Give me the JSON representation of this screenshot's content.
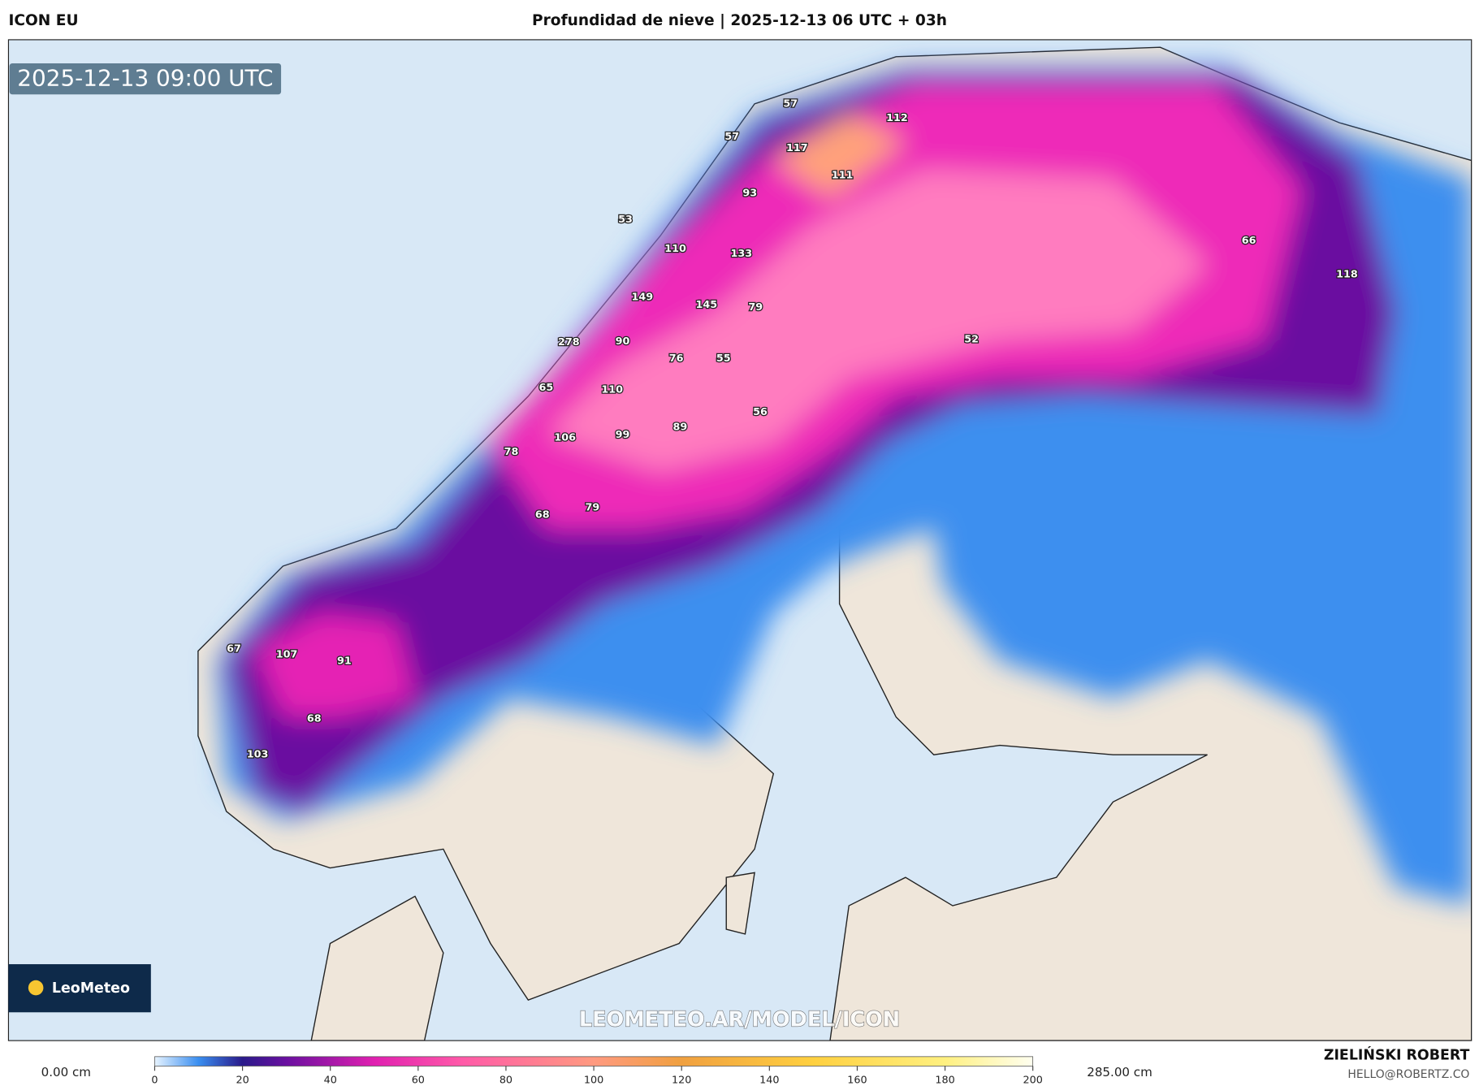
{
  "header": {
    "model": "ICON EU",
    "title": "Profundidad de nieve | 2025-12-13 06 UTC + 03h"
  },
  "map": {
    "timestamp": "2025-12-13 09:00 UTC",
    "point_values": [
      57,
      112,
      57,
      117,
      111,
      93,
      53,
      110,
      133,
      66,
      118,
      149,
      145,
      79,
      278,
      90,
      52,
      76,
      55,
      65,
      110,
      56,
      89,
      106,
      99,
      78,
      79,
      68,
      67,
      107,
      91,
      68,
      103
    ],
    "watermark": "LEOMETEO.AR/MODEL/ICON",
    "logo": "LeoMeteo"
  },
  "colorbar": {
    "min_label": "0.00 cm",
    "max_label": "285.00 cm",
    "ticks": [
      0,
      20,
      40,
      60,
      80,
      100,
      120,
      140,
      160,
      180,
      200
    ]
  },
  "credits": {
    "author": "ZIELIŃSKI ROBERT",
    "email": "HELLO@ROBERTZ.CO"
  }
}
